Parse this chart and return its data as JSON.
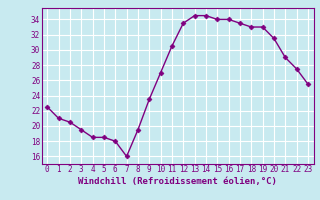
{
  "x": [
    0,
    1,
    2,
    3,
    4,
    5,
    6,
    7,
    8,
    9,
    10,
    11,
    12,
    13,
    14,
    15,
    16,
    17,
    18,
    19,
    20,
    21,
    22,
    23
  ],
  "y": [
    22.5,
    21.0,
    20.5,
    19.5,
    18.5,
    18.5,
    18.0,
    16.0,
    19.5,
    23.5,
    27.0,
    30.5,
    33.5,
    34.5,
    34.5,
    34.0,
    34.0,
    33.5,
    33.0,
    33.0,
    31.5,
    29.0,
    27.5,
    25.5
  ],
  "line_color": "#800080",
  "marker": "D",
  "marker_size": 2.5,
  "bg_color": "#c8eaf0",
  "grid_color": "#ffffff",
  "xlabel": "Windchill (Refroidissement éolien,°C)",
  "xlabel_color": "#800080",
  "ylim": [
    15.0,
    35.5
  ],
  "yticks": [
    16,
    18,
    20,
    22,
    24,
    26,
    28,
    30,
    32,
    34
  ],
  "xticks": [
    0,
    1,
    2,
    3,
    4,
    5,
    6,
    7,
    8,
    9,
    10,
    11,
    12,
    13,
    14,
    15,
    16,
    17,
    18,
    19,
    20,
    21,
    22,
    23
  ],
  "tick_color": "#800080",
  "tick_fontsize": 5.5,
  "xlabel_fontsize": 6.5,
  "line_width": 1.0,
  "spine_color": "#800080"
}
